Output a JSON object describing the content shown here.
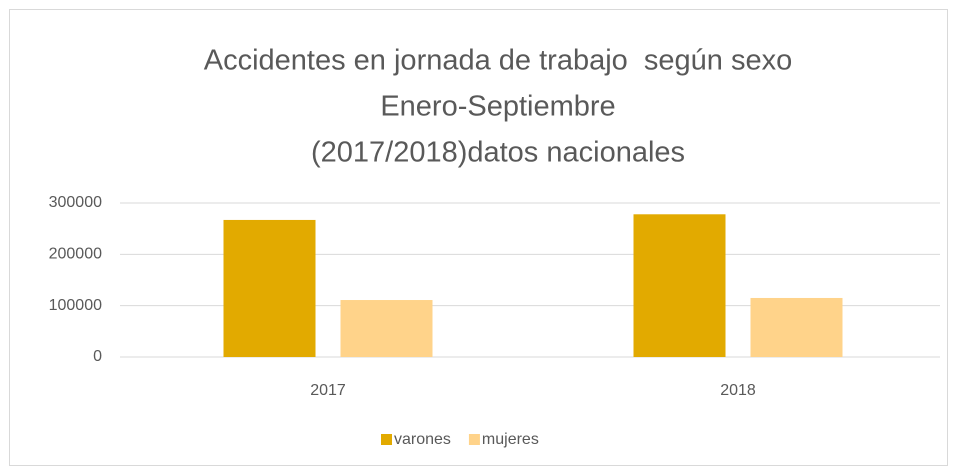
{
  "chart_data": {
    "type": "bar",
    "title": [
      "Accidentes en jornada de trabajo  según sexo",
      "Enero-Septiembre",
      "(2017/2018)datos nacionales"
    ],
    "categories": [
      "2017",
      "2018"
    ],
    "series": [
      {
        "name": "varones",
        "color": "#e2aa00",
        "values": [
          267000,
          278000
        ]
      },
      {
        "name": "mujeres",
        "color": "#ffd38a",
        "values": [
          111000,
          115000
        ]
      }
    ],
    "ylim": [
      0,
      300000
    ],
    "yticks": [
      0,
      100000,
      200000,
      300000
    ],
    "grid": true,
    "legend": "bottom"
  }
}
